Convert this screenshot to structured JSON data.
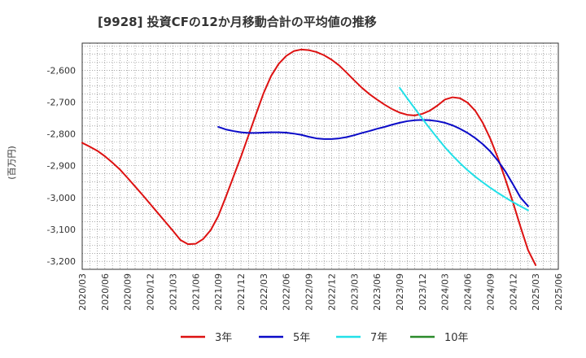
{
  "chart_data": {
    "type": "line",
    "title": "[9928]  投資CFの12か月移動合計の平均値の推移",
    "ylabel": "(百万円)",
    "xlabel": "",
    "ylim": [
      -3225,
      -2515
    ],
    "yticks": [
      -3200,
      -3100,
      -3000,
      -2900,
      -2800,
      -2700,
      -2600
    ],
    "ytick_labels": [
      "-3,200",
      "-3,100",
      "-3,000",
      "-2,900",
      "-2,800",
      "-2,700",
      "-2,600"
    ],
    "xticks": [
      "2020/03",
      "2020/06",
      "2020/09",
      "2020/12",
      "2021/03",
      "2021/06",
      "2021/09",
      "2021/12",
      "2022/03",
      "2022/06",
      "2022/09",
      "2022/12",
      "2023/03",
      "2023/06",
      "2023/09",
      "2023/12",
      "2024/03",
      "2024/06",
      "2024/09",
      "2024/12",
      "2025/03",
      "2025/06"
    ],
    "grid": true,
    "legend_position": "bottom",
    "series": [
      {
        "name": "3年",
        "color": "#dd1111",
        "points": [
          [
            "2020/03",
            -2828
          ],
          [
            "2020/04",
            -2840
          ],
          [
            "2020/05",
            -2853
          ],
          [
            "2020/06",
            -2870
          ],
          [
            "2020/07",
            -2890
          ],
          [
            "2020/08",
            -2912
          ],
          [
            "2020/09",
            -2938
          ],
          [
            "2020/10",
            -2965
          ],
          [
            "2020/11",
            -2992
          ],
          [
            "2020/12",
            -3020
          ],
          [
            "2021/01",
            -3048
          ],
          [
            "2021/02",
            -3076
          ],
          [
            "2021/03",
            -3104
          ],
          [
            "2021/04",
            -3133
          ],
          [
            "2021/05",
            -3146
          ],
          [
            "2021/06",
            -3145
          ],
          [
            "2021/07",
            -3130
          ],
          [
            "2021/08",
            -3102
          ],
          [
            "2021/09",
            -3058
          ],
          [
            "2021/10",
            -2998
          ],
          [
            "2021/11",
            -2935
          ],
          [
            "2021/12",
            -2872
          ],
          [
            "2022/01",
            -2805
          ],
          [
            "2022/02",
            -2738
          ],
          [
            "2022/03",
            -2672
          ],
          [
            "2022/04",
            -2618
          ],
          [
            "2022/05",
            -2580
          ],
          [
            "2022/06",
            -2555
          ],
          [
            "2022/07",
            -2540
          ],
          [
            "2022/08",
            -2535
          ],
          [
            "2022/09",
            -2537
          ],
          [
            "2022/10",
            -2543
          ],
          [
            "2022/11",
            -2553
          ],
          [
            "2022/12",
            -2567
          ],
          [
            "2023/01",
            -2585
          ],
          [
            "2023/02",
            -2608
          ],
          [
            "2023/03",
            -2632
          ],
          [
            "2023/04",
            -2655
          ],
          [
            "2023/05",
            -2675
          ],
          [
            "2023/06",
            -2692
          ],
          [
            "2023/07",
            -2708
          ],
          [
            "2023/08",
            -2722
          ],
          [
            "2023/09",
            -2733
          ],
          [
            "2023/10",
            -2740
          ],
          [
            "2023/11",
            -2742
          ],
          [
            "2023/12",
            -2737
          ],
          [
            "2024/01",
            -2727
          ],
          [
            "2024/02",
            -2711
          ],
          [
            "2024/03",
            -2692
          ],
          [
            "2024/04",
            -2685
          ],
          [
            "2024/05",
            -2688
          ],
          [
            "2024/06",
            -2702
          ],
          [
            "2024/07",
            -2727
          ],
          [
            "2024/08",
            -2765
          ],
          [
            "2024/09",
            -2815
          ],
          [
            "2024/10",
            -2875
          ],
          [
            "2024/11",
            -2943
          ],
          [
            "2024/12",
            -3015
          ],
          [
            "2025/01",
            -3092
          ],
          [
            "2025/02",
            -3165
          ],
          [
            "2025/03",
            -3212
          ]
        ]
      },
      {
        "name": "5年",
        "color": "#0a0ac8",
        "points": [
          [
            "2021/09",
            -2778
          ],
          [
            "2021/10",
            -2786
          ],
          [
            "2021/11",
            -2791
          ],
          [
            "2021/12",
            -2795
          ],
          [
            "2022/01",
            -2797
          ],
          [
            "2022/02",
            -2797
          ],
          [
            "2022/03",
            -2796
          ],
          [
            "2022/04",
            -2795
          ],
          [
            "2022/05",
            -2795
          ],
          [
            "2022/06",
            -2796
          ],
          [
            "2022/07",
            -2799
          ],
          [
            "2022/08",
            -2803
          ],
          [
            "2022/09",
            -2809
          ],
          [
            "2022/10",
            -2814
          ],
          [
            "2022/11",
            -2816
          ],
          [
            "2022/12",
            -2816
          ],
          [
            "2023/01",
            -2814
          ],
          [
            "2023/02",
            -2810
          ],
          [
            "2023/03",
            -2804
          ],
          [
            "2023/04",
            -2797
          ],
          [
            "2023/05",
            -2791
          ],
          [
            "2023/06",
            -2784
          ],
          [
            "2023/07",
            -2778
          ],
          [
            "2023/08",
            -2771
          ],
          [
            "2023/09",
            -2765
          ],
          [
            "2023/10",
            -2760
          ],
          [
            "2023/11",
            -2757
          ],
          [
            "2023/12",
            -2756
          ],
          [
            "2024/01",
            -2757
          ],
          [
            "2024/02",
            -2760
          ],
          [
            "2024/03",
            -2765
          ],
          [
            "2024/04",
            -2773
          ],
          [
            "2024/05",
            -2784
          ],
          [
            "2024/06",
            -2797
          ],
          [
            "2024/07",
            -2813
          ],
          [
            "2024/08",
            -2832
          ],
          [
            "2024/09",
            -2855
          ],
          [
            "2024/10",
            -2884
          ],
          [
            "2024/11",
            -2918
          ],
          [
            "2024/12",
            -2958
          ],
          [
            "2025/01",
            -3000
          ],
          [
            "2025/02",
            -3027
          ]
        ]
      },
      {
        "name": "7年",
        "color": "#22e0e8",
        "points": [
          [
            "2023/09",
            -2655
          ],
          [
            "2023/10",
            -2688
          ],
          [
            "2023/11",
            -2720
          ],
          [
            "2023/12",
            -2752
          ],
          [
            "2024/01",
            -2783
          ],
          [
            "2024/02",
            -2813
          ],
          [
            "2024/03",
            -2842
          ],
          [
            "2024/04",
            -2868
          ],
          [
            "2024/05",
            -2892
          ],
          [
            "2024/06",
            -2914
          ],
          [
            "2024/07",
            -2934
          ],
          [
            "2024/08",
            -2952
          ],
          [
            "2024/09",
            -2969
          ],
          [
            "2024/10",
            -2985
          ],
          [
            "2024/11",
            -3000
          ],
          [
            "2024/12",
            -3014
          ],
          [
            "2025/01",
            -3027
          ],
          [
            "2025/02",
            -3040
          ]
        ]
      },
      {
        "name": "10年",
        "color": "#2a8a2a",
        "points": []
      }
    ]
  }
}
